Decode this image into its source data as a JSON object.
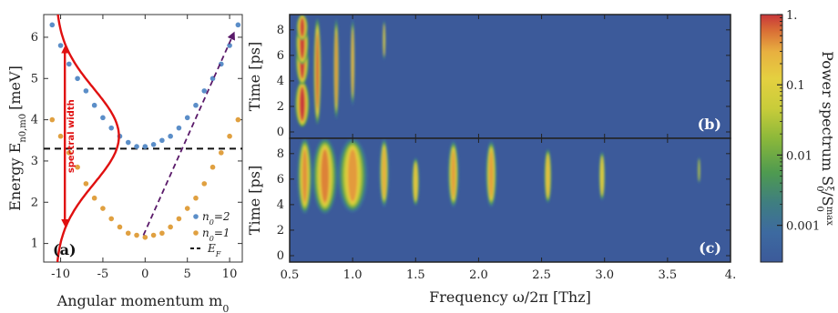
{
  "chart_data": [
    {
      "type": "scatter",
      "panel": "(a)",
      "xlabel": "Angular momentum m",
      "xlabel_sub": "0",
      "ylabel_main": "Energy E",
      "ylabel_sub": "n0,m0",
      "ylabel_unit": "[meV]",
      "xlim": [
        -12,
        11.5
      ],
      "ylim": [
        0.55,
        6.55
      ],
      "xticks": [
        "-10",
        "-5",
        "0",
        "5",
        "10"
      ],
      "yticks": [
        "1",
        "2",
        "3",
        "4",
        "5",
        "6"
      ],
      "series": [
        {
          "name": "n0=2",
          "color": "#5b8ec8",
          "x": [
            -11,
            -10,
            -9,
            -8,
            -7,
            -6,
            -5,
            -4,
            -3,
            -2,
            -1,
            0,
            1,
            2,
            3,
            4,
            5,
            6,
            7,
            8,
            9,
            10,
            11
          ],
          "y": [
            6.3,
            5.8,
            5.35,
            5.0,
            4.7,
            4.35,
            4.05,
            3.8,
            3.6,
            3.45,
            3.35,
            3.35,
            3.4,
            3.5,
            3.6,
            3.8,
            4.05,
            4.35,
            4.7,
            5.0,
            5.35,
            5.8,
            6.3
          ]
        },
        {
          "name": "n0=1",
          "color": "#e0a040",
          "x": [
            -11,
            -10,
            -9,
            -8,
            -7,
            -6,
            -5,
            -4,
            -3,
            -2,
            -1,
            0,
            1,
            2,
            3,
            4,
            5,
            6,
            7,
            8,
            9,
            10,
            11
          ],
          "y": [
            4.0,
            3.6,
            3.2,
            2.85,
            2.45,
            2.1,
            1.85,
            1.6,
            1.4,
            1.25,
            1.2,
            1.15,
            1.2,
            1.25,
            1.4,
            1.6,
            1.85,
            2.1,
            2.45,
            2.85,
            3.2,
            3.6,
            4.0
          ]
        }
      ],
      "fermi_level": {
        "name": "E_F",
        "value": 3.3
      },
      "spectral_profile": {
        "color": "#e01010",
        "center": 3.6,
        "sigma": 1.15,
        "amplitude": 7.5,
        "baseline_x": -10.6
      },
      "spectral_width": {
        "label": "spectral width",
        "from": 1.5,
        "to": 5.7,
        "x": -9.5
      },
      "arrow": {
        "from": [
          -0.2,
          1.2
        ],
        "to": [
          10.5,
          6.1
        ],
        "color": "#5a1a6a"
      },
      "legend": {
        "n2": "n",
        "n2_rest": "=2",
        "n1": "n",
        "n1_rest": "=1",
        "ef": "E",
        "ef_sub": "F",
        "sub0": "0"
      }
    },
    {
      "type": "heatmap",
      "panel": "(b)",
      "ylabel": "Time [ps]",
      "xlim": [
        0.5,
        4.0
      ],
      "ylim": [
        -0.5,
        9.2
      ],
      "yticks": [
        "0",
        "2",
        "4",
        "6",
        "8"
      ],
      "blobs": [
        {
          "f": 0.6,
          "t0": 0.4,
          "t1": 4.0,
          "w": 0.055,
          "amp": 1.0
        },
        {
          "f": 0.6,
          "t0": 3.7,
          "t1": 7.4,
          "w": 0.05,
          "amp": 0.95
        },
        {
          "f": 0.6,
          "t0": 5.3,
          "t1": 8.6,
          "w": 0.05,
          "amp": 0.9
        },
        {
          "f": 0.6,
          "t0": 7.2,
          "t1": 9.2,
          "w": 0.045,
          "amp": 0.85
        },
        {
          "f": 0.72,
          "t0": 0.6,
          "t1": 8.9,
          "w": 0.03,
          "amp": 0.55
        },
        {
          "f": 0.87,
          "t0": 1.0,
          "t1": 8.9,
          "w": 0.022,
          "amp": 0.28
        },
        {
          "f": 1.0,
          "t0": 2.0,
          "t1": 8.9,
          "w": 0.018,
          "amp": 0.17
        },
        {
          "f": 1.25,
          "t0": 5.5,
          "t1": 8.9,
          "w": 0.012,
          "amp": 0.06
        }
      ]
    },
    {
      "type": "heatmap",
      "panel": "(c)",
      "xlabel": "Frequency ω/2π [Thz]",
      "ylabel": "Time [ps]",
      "xlim": [
        0.5,
        4.0
      ],
      "ylim": [
        -0.5,
        9.2
      ],
      "xticks": [
        "0.5",
        "1.0",
        "1.5",
        "2.0",
        "2.5",
        "3.0",
        "3.5",
        "4."
      ],
      "yticks": [
        "0",
        "2",
        "4",
        "6",
        "8"
      ],
      "blobs": [
        {
          "f": 0.62,
          "t0": 3.3,
          "t1": 9.2,
          "w": 0.06,
          "amp": 0.25
        },
        {
          "f": 0.78,
          "t0": 3.3,
          "t1": 9.2,
          "w": 0.1,
          "amp": 0.3
        },
        {
          "f": 1.0,
          "t0": 3.4,
          "t1": 9.2,
          "w": 0.12,
          "amp": 0.22
        },
        {
          "f": 1.25,
          "t0": 3.8,
          "t1": 9.2,
          "w": 0.04,
          "amp": 0.18
        },
        {
          "f": 1.5,
          "t0": 3.8,
          "t1": 7.8,
          "w": 0.035,
          "amp": 0.1
        },
        {
          "f": 1.8,
          "t0": 3.8,
          "t1": 9.0,
          "w": 0.045,
          "amp": 0.22
        },
        {
          "f": 2.1,
          "t0": 3.8,
          "t1": 9.0,
          "w": 0.045,
          "amp": 0.22
        },
        {
          "f": 2.55,
          "t0": 4.0,
          "t1": 8.5,
          "w": 0.035,
          "amp": 0.12
        },
        {
          "f": 2.98,
          "t0": 4.2,
          "t1": 8.3,
          "w": 0.03,
          "amp": 0.08
        },
        {
          "f": 3.75,
          "t0": 5.5,
          "t1": 7.9,
          "w": 0.015,
          "amp": 0.02
        }
      ]
    }
  ],
  "colorbar": {
    "ticks": [
      "1.",
      "0.1",
      "0.01",
      "0.001"
    ],
    "tick_values": [
      1,
      0.1,
      0.01,
      0.001
    ],
    "range": [
      0.0003,
      1
    ],
    "scale": "log",
    "label_main": "Power spectrum S",
    "label_sub": "0",
    "label_sup": "ξ",
    "label_mid": "/S",
    "label_sub2": "0",
    "label_sup2": "max",
    "stops": [
      "#3c5a9a",
      "#3d6aa0",
      "#3f7e80",
      "#4e9a50",
      "#8cb83a",
      "#c8cc3a",
      "#e4d040",
      "#e8b040",
      "#d86a35",
      "#c8363a"
    ]
  }
}
